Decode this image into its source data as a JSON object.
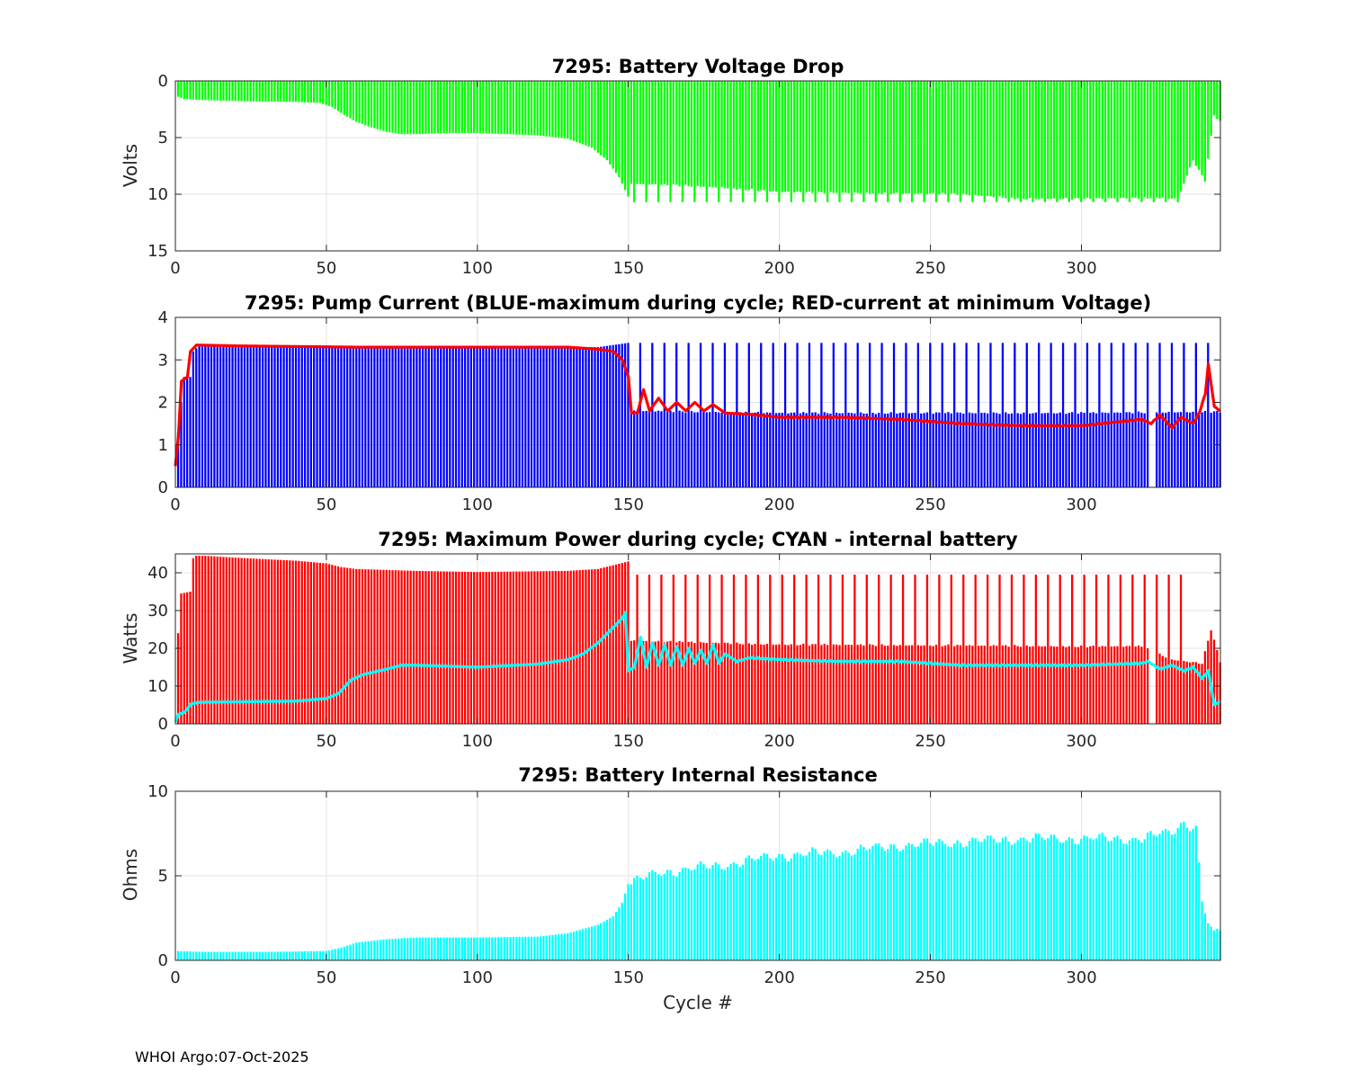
{
  "footer": "WHOI Argo:07-Oct-2025",
  "colors": {
    "green": "#00ff00",
    "blue": "#0000ff",
    "red": "#ff0000",
    "cyan": "#00ffff"
  },
  "chart_data": [
    {
      "id": "voltage",
      "type": "bar",
      "title": "7295: Battery Voltage Drop",
      "ylabel": "Volts",
      "xlabel": "",
      "xlim": [
        0,
        346
      ],
      "ylim": [
        0,
        15
      ],
      "y_reversed": true,
      "yticks": [
        0,
        5,
        10,
        15
      ],
      "xticks": [
        0,
        50,
        100,
        150,
        200,
        250,
        300
      ],
      "grid": true,
      "series": [
        {
          "name": "Voltage drop",
          "style": "bar",
          "color": "green",
          "knots": [
            [
              0,
              1.3
            ],
            [
              3,
              1.6
            ],
            [
              10,
              1.7
            ],
            [
              25,
              1.8
            ],
            [
              40,
              1.85
            ],
            [
              48,
              1.95
            ],
            [
              52,
              2.3
            ],
            [
              56,
              3.0
            ],
            [
              60,
              3.6
            ],
            [
              65,
              4.1
            ],
            [
              70,
              4.5
            ],
            [
              75,
              4.7
            ],
            [
              80,
              4.7
            ],
            [
              90,
              4.6
            ],
            [
              100,
              4.6
            ],
            [
              110,
              4.7
            ],
            [
              120,
              4.8
            ],
            [
              130,
              5.1
            ],
            [
              138,
              5.9
            ],
            [
              143,
              7.0
            ],
            [
              147,
              8.5
            ],
            [
              150,
              10.2
            ],
            [
              151,
              9.1
            ],
            [
              165,
              9.2
            ],
            [
              180,
              9.4
            ],
            [
              200,
              9.8
            ],
            [
              230,
              9.9
            ],
            [
              260,
              10.0
            ],
            [
              280,
              10.4
            ],
            [
              300,
              10.4
            ],
            [
              325,
              10.3
            ],
            [
              332,
              10.4
            ],
            [
              337,
              7.0
            ],
            [
              341,
              8.8
            ],
            [
              344,
              3.0
            ],
            [
              346,
              3.6
            ]
          ],
          "spikes": {
            "start": 152,
            "every": 4,
            "value": 10.7,
            "end": 335
          }
        }
      ]
    },
    {
      "id": "current",
      "type": "bar",
      "title": "7295: Pump Current (BLUE-maximum during cycle; RED-current at minimum Voltage)",
      "ylabel": "",
      "xlabel": "",
      "xlim": [
        0,
        346
      ],
      "ylim": [
        0,
        4
      ],
      "yticks": [
        0,
        1,
        2,
        3,
        4
      ],
      "xticks": [
        0,
        50,
        100,
        150,
        200,
        250,
        300
      ],
      "grid": true,
      "series": [
        {
          "name": "BLUE-maximum during cycle",
          "style": "bar",
          "color": "blue",
          "knots": [
            [
              0,
              0.6
            ],
            [
              2,
              2.0
            ],
            [
              3,
              2.6
            ],
            [
              5,
              2.6
            ],
            [
              6,
              3.2
            ],
            [
              8,
              3.35
            ],
            [
              20,
              3.3
            ],
            [
              100,
              3.32
            ],
            [
              140,
              3.3
            ],
            [
              145,
              3.35
            ],
            [
              150,
              3.4
            ],
            [
              151,
              1.8
            ],
            [
              200,
              1.75
            ],
            [
              250,
              1.75
            ],
            [
              300,
              1.75
            ],
            [
              346,
              1.78
            ]
          ],
          "spikes": {
            "start": 154,
            "every": 4,
            "value": 3.4,
            "end": 343
          }
        },
        {
          "name": "RED-current at minimum Voltage",
          "style": "line",
          "color": "red",
          "knots": [
            [
              0,
              0.5
            ],
            [
              1,
              1.2
            ],
            [
              2,
              2.5
            ],
            [
              4,
              2.6
            ],
            [
              5,
              3.2
            ],
            [
              7,
              3.35
            ],
            [
              20,
              3.33
            ],
            [
              60,
              3.3
            ],
            [
              100,
              3.3
            ],
            [
              130,
              3.3
            ],
            [
              140,
              3.25
            ],
            [
              145,
              3.2
            ],
            [
              148,
              3.0
            ],
            [
              150,
              2.6
            ],
            [
              151,
              1.75
            ],
            [
              153,
              1.75
            ],
            [
              155,
              2.3
            ],
            [
              157,
              1.8
            ],
            [
              160,
              2.1
            ],
            [
              163,
              1.8
            ],
            [
              166,
              2.0
            ],
            [
              169,
              1.8
            ],
            [
              172,
              2.0
            ],
            [
              175,
              1.8
            ],
            [
              178,
              1.95
            ],
            [
              182,
              1.75
            ],
            [
              190,
              1.72
            ],
            [
              200,
              1.65
            ],
            [
              220,
              1.65
            ],
            [
              240,
              1.6
            ],
            [
              260,
              1.5
            ],
            [
              280,
              1.45
            ],
            [
              300,
              1.45
            ],
            [
              320,
              1.6
            ],
            [
              323,
              1.5
            ],
            [
              326,
              1.7
            ],
            [
              330,
              1.4
            ],
            [
              333,
              1.65
            ],
            [
              337,
              1.5
            ],
            [
              339,
              1.75
            ],
            [
              341,
              2.2
            ],
            [
              342,
              2.9
            ],
            [
              343,
              2.4
            ],
            [
              344,
              1.9
            ],
            [
              346,
              1.8
            ]
          ]
        }
      ]
    },
    {
      "id": "power",
      "type": "bar",
      "title": "7295: Maximum Power during cycle; CYAN - internal battery",
      "ylabel": "Watts",
      "xlabel": "",
      "xlim": [
        0,
        346
      ],
      "ylim": [
        0,
        45
      ],
      "yticks": [
        0,
        10,
        20,
        30,
        40
      ],
      "xticks": [
        0,
        50,
        100,
        150,
        200,
        250,
        300
      ],
      "grid": true,
      "series": [
        {
          "name": "Maximum Power during cycle",
          "style": "bar",
          "color": "red",
          "knots": [
            [
              0,
              0
            ],
            [
              1,
              24
            ],
            [
              2,
              34.5
            ],
            [
              5,
              35
            ],
            [
              5.5,
              43.5
            ],
            [
              7,
              44.5
            ],
            [
              10,
              44.5
            ],
            [
              20,
              44
            ],
            [
              40,
              43.2
            ],
            [
              50,
              42.5
            ],
            [
              55,
              41.5
            ],
            [
              60,
              41
            ],
            [
              80,
              40.5
            ],
            [
              100,
              40.2
            ],
            [
              130,
              40.5
            ],
            [
              140,
              41
            ],
            [
              150,
              43
            ],
            [
              151,
              22
            ],
            [
              200,
              21
            ],
            [
              250,
              20.8
            ],
            [
              300,
              20.5
            ],
            [
              320,
              20.5
            ],
            [
              330,
              17
            ],
            [
              340,
              16
            ],
            [
              343,
              25
            ],
            [
              346,
              16.5
            ]
          ],
          "spikes": {
            "start": 153,
            "every": 4,
            "value": 39.5,
            "end": 335
          }
        },
        {
          "name": "CYAN - internal battery",
          "style": "line",
          "color": "cyan",
          "knots": [
            [
              0,
              0.5
            ],
            [
              1,
              2.5
            ],
            [
              3,
              3.0
            ],
            [
              4,
              4.0
            ],
            [
              5,
              5.2
            ],
            [
              8,
              5.7
            ],
            [
              20,
              5.8
            ],
            [
              40,
              6.0
            ],
            [
              50,
              6.7
            ],
            [
              54,
              8.0
            ],
            [
              58,
              11.5
            ],
            [
              62,
              13.0
            ],
            [
              70,
              14.5
            ],
            [
              75,
              15.5
            ],
            [
              80,
              15.5
            ],
            [
              100,
              15.0
            ],
            [
              120,
              15.8
            ],
            [
              130,
              17.0
            ],
            [
              135,
              18.5
            ],
            [
              140,
              21.5
            ],
            [
              145,
              25.5
            ],
            [
              148,
              28.0
            ],
            [
              149,
              29.5
            ],
            [
              150,
              14.0
            ],
            [
              152,
              15.0
            ],
            [
              154,
              23.0
            ],
            [
              156,
              15.0
            ],
            [
              158,
              21.5
            ],
            [
              160,
              15.5
            ],
            [
              162,
              21.0
            ],
            [
              164,
              15.5
            ],
            [
              166,
              20.5
            ],
            [
              168,
              15.5
            ],
            [
              170,
              20.0
            ],
            [
              172,
              16.0
            ],
            [
              174,
              19.5
            ],
            [
              176,
              16.0
            ],
            [
              178,
              21.0
            ],
            [
              180,
              16.0
            ],
            [
              182,
              18.5
            ],
            [
              186,
              16.5
            ],
            [
              190,
              17.5
            ],
            [
              200,
              17.0
            ],
            [
              220,
              16.5
            ],
            [
              240,
              16.5
            ],
            [
              260,
              15.5
            ],
            [
              280,
              15.5
            ],
            [
              300,
              15.5
            ],
            [
              320,
              16.0
            ],
            [
              322,
              16.5
            ],
            [
              326,
              14.5
            ],
            [
              330,
              15.5
            ],
            [
              334,
              14.0
            ],
            [
              337,
              15.0
            ],
            [
              340,
              12.0
            ],
            [
              342,
              14.0
            ],
            [
              344,
              5.0
            ],
            [
              346,
              6.0
            ]
          ]
        }
      ]
    },
    {
      "id": "resistance",
      "type": "bar",
      "title": "7295: Battery Internal Resistance",
      "ylabel": "Ohms",
      "xlabel": "Cycle #",
      "xlim": [
        0,
        346
      ],
      "ylim": [
        0,
        10
      ],
      "yticks": [
        0,
        5,
        10
      ],
      "xticks": [
        0,
        50,
        100,
        150,
        200,
        250,
        300
      ],
      "grid": true,
      "series": [
        {
          "name": "Battery Internal Resistance",
          "style": "bar",
          "color": "cyan",
          "knots": [
            [
              0,
              0.55
            ],
            [
              10,
              0.5
            ],
            [
              30,
              0.5
            ],
            [
              50,
              0.55
            ],
            [
              55,
              0.75
            ],
            [
              60,
              1.05
            ],
            [
              70,
              1.25
            ],
            [
              80,
              1.35
            ],
            [
              100,
              1.35
            ],
            [
              120,
              1.4
            ],
            [
              130,
              1.6
            ],
            [
              140,
              2.1
            ],
            [
              145,
              2.6
            ],
            [
              148,
              3.4
            ],
            [
              150,
              4.5
            ],
            [
              160,
              5.2
            ],
            [
              180,
              5.6
            ],
            [
              200,
              6.2
            ],
            [
              220,
              6.4
            ],
            [
              240,
              6.8
            ],
            [
              260,
              7.0
            ],
            [
              280,
              7.2
            ],
            [
              300,
              7.2
            ],
            [
              320,
              7.2
            ],
            [
              330,
              7.6
            ],
            [
              334,
              8.2
            ],
            [
              338,
              7.8
            ],
            [
              340,
              3.5
            ],
            [
              342,
              2.2
            ],
            [
              344,
              1.4
            ],
            [
              346,
              1.9
            ]
          ]
        }
      ]
    }
  ]
}
